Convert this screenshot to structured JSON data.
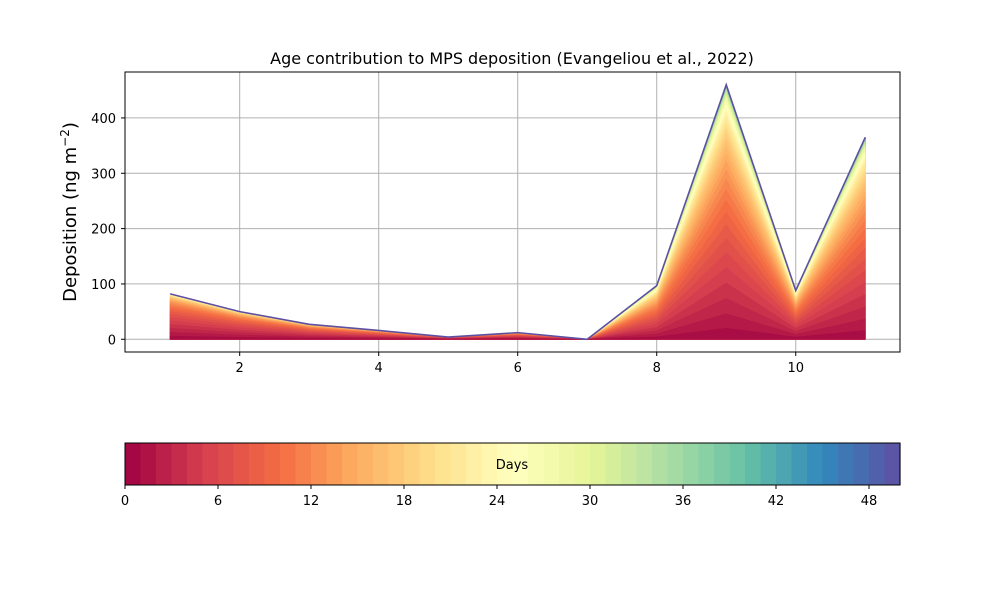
{
  "chart_data": {
    "type": "area",
    "title": "Age contribution to MPS deposition (Evangeliou et al., 2022)",
    "ylabel_main": "Deposition (ng m",
    "ylabel_exp": "−2",
    "ylabel_close": ")",
    "xlabel": "",
    "x": [
      1,
      2,
      3,
      4,
      5,
      6,
      7,
      8,
      9,
      10,
      11
    ],
    "totals": [
      82,
      50,
      27,
      16,
      4,
      12,
      0,
      97,
      460,
      88,
      365
    ],
    "xlim": [
      0.35,
      11.5
    ],
    "ylim": [
      -23,
      483
    ],
    "xticks": [
      2,
      4,
      6,
      8,
      10
    ],
    "yticks": [
      0,
      100,
      200,
      300,
      400
    ],
    "grid": true,
    "stack_shape": {
      "comment_free": true,
      "ages": [
        0,
        1,
        2,
        3,
        4,
        5,
        6,
        7,
        8,
        9,
        10,
        11,
        12,
        13,
        14,
        15,
        16,
        17,
        18,
        19,
        20,
        21,
        22,
        23,
        24,
        25,
        26,
        27,
        28,
        29,
        30,
        31,
        32,
        33,
        34,
        35,
        36,
        37,
        38,
        39,
        40,
        41,
        42,
        43,
        44,
        45,
        46,
        47,
        48,
        49,
        50
      ]
    },
    "colorbar": {
      "label": "Days",
      "min": 0,
      "max": 50,
      "ticks": [
        0,
        6,
        12,
        18,
        24,
        30,
        36,
        42,
        48
      ],
      "colormap": "Spectral"
    }
  }
}
